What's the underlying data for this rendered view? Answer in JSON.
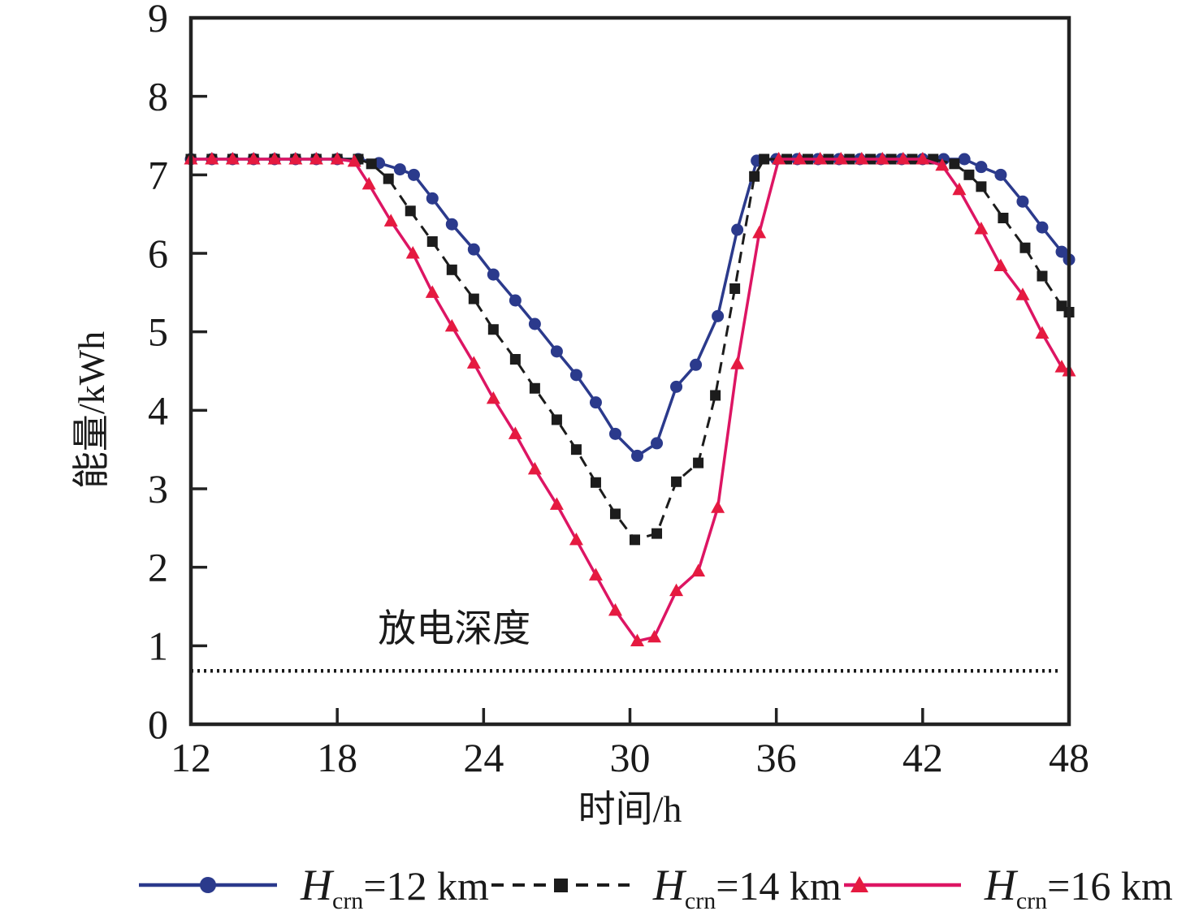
{
  "page": {
    "background": "#ffffff",
    "axis_color": "#222222",
    "text_color": "#1a1a1a"
  },
  "chart_data": {
    "type": "line",
    "title": "",
    "xlabel": "时间/h",
    "ylabel": "能量/kWh",
    "xlim": [
      12,
      48
    ],
    "ylim": [
      0,
      9
    ],
    "xticks": [
      12,
      18,
      24,
      30,
      36,
      42,
      48
    ],
    "yticks": [
      0,
      1,
      2,
      3,
      4,
      5,
      6,
      7,
      8,
      9
    ],
    "grid": false,
    "legend_position": "bottom",
    "annotation": {
      "text": "放电深度",
      "x": 22.8,
      "y": 1.22
    },
    "depth_line": {
      "label": "放电深度",
      "y": 0.68,
      "x_start": 12,
      "x_end": 47.55,
      "color": "#1a1a1a",
      "style": "dotted"
    },
    "series": [
      {
        "name": "Hcrn=12 km",
        "color": "#2b3a8c",
        "marker": "circle",
        "line_style": "solid",
        "points": [
          [
            12,
            7.2
          ],
          [
            12.86,
            7.2
          ],
          [
            13.71,
            7.2
          ],
          [
            14.57,
            7.2
          ],
          [
            15.43,
            7.2
          ],
          [
            16.29,
            7.2
          ],
          [
            17.14,
            7.2
          ],
          [
            18,
            7.2
          ],
          [
            18.86,
            7.2
          ],
          [
            19.71,
            7.15
          ],
          [
            20.57,
            7.07
          ],
          [
            21.14,
            7.0
          ],
          [
            21.9,
            6.7
          ],
          [
            22.7,
            6.37
          ],
          [
            23.6,
            6.05
          ],
          [
            24.4,
            5.73
          ],
          [
            25.3,
            5.4
          ],
          [
            26.1,
            5.1
          ],
          [
            27,
            4.75
          ],
          [
            27.8,
            4.45
          ],
          [
            28.6,
            4.1
          ],
          [
            29.4,
            3.7
          ],
          [
            30.3,
            3.42
          ],
          [
            31.1,
            3.58
          ],
          [
            31.9,
            4.3
          ],
          [
            32.7,
            4.58
          ],
          [
            33.6,
            5.2
          ],
          [
            34.4,
            6.3
          ],
          [
            35.2,
            7.18
          ],
          [
            36,
            7.2
          ],
          [
            36.86,
            7.2
          ],
          [
            37.71,
            7.2
          ],
          [
            38.57,
            7.2
          ],
          [
            39.43,
            7.2
          ],
          [
            40.29,
            7.2
          ],
          [
            41.14,
            7.2
          ],
          [
            42,
            7.2
          ],
          [
            42.86,
            7.2
          ],
          [
            43.71,
            7.2
          ],
          [
            44.4,
            7.1
          ],
          [
            45.2,
            7.0
          ],
          [
            46.1,
            6.66
          ],
          [
            46.9,
            6.33
          ],
          [
            47.7,
            6.02
          ],
          [
            48,
            5.92
          ]
        ]
      },
      {
        "name": "Hcrn=14 km",
        "color": "#1c1c1c",
        "marker": "square",
        "line_style": "dashed",
        "points": [
          [
            12,
            7.2
          ],
          [
            12.86,
            7.2
          ],
          [
            13.71,
            7.2
          ],
          [
            14.57,
            7.2
          ],
          [
            15.43,
            7.2
          ],
          [
            16.29,
            7.2
          ],
          [
            17.14,
            7.2
          ],
          [
            18,
            7.2
          ],
          [
            18.86,
            7.2
          ],
          [
            19.4,
            7.14
          ],
          [
            20.1,
            6.95
          ],
          [
            21,
            6.54
          ],
          [
            21.9,
            6.15
          ],
          [
            22.7,
            5.79
          ],
          [
            23.6,
            5.42
          ],
          [
            24.4,
            5.03
          ],
          [
            25.3,
            4.65
          ],
          [
            26.1,
            4.28
          ],
          [
            27,
            3.88
          ],
          [
            27.8,
            3.5
          ],
          [
            28.6,
            3.08
          ],
          [
            29.4,
            2.68
          ],
          [
            30.2,
            2.35
          ],
          [
            31.1,
            2.43
          ],
          [
            31.9,
            3.09
          ],
          [
            32.8,
            3.33
          ],
          [
            33.5,
            4.19
          ],
          [
            34.3,
            5.55
          ],
          [
            35.1,
            6.98
          ],
          [
            35.5,
            7.2
          ],
          [
            36.43,
            7.2
          ],
          [
            37.29,
            7.2
          ],
          [
            38.14,
            7.2
          ],
          [
            39,
            7.2
          ],
          [
            39.86,
            7.2
          ],
          [
            40.71,
            7.2
          ],
          [
            41.57,
            7.2
          ],
          [
            42.43,
            7.2
          ],
          [
            43.3,
            7.14
          ],
          [
            43.9,
            7.0
          ],
          [
            44.4,
            6.85
          ],
          [
            45.3,
            6.45
          ],
          [
            46.2,
            6.07
          ],
          [
            46.9,
            5.71
          ],
          [
            47.7,
            5.33
          ],
          [
            48,
            5.25
          ]
        ]
      },
      {
        "name": "Hcrn=16 km",
        "color": "#dd1563",
        "marker": "triangle",
        "marker_color": "#e51a40",
        "line_style": "solid",
        "points": [
          [
            12,
            7.2
          ],
          [
            12.86,
            7.2
          ],
          [
            13.71,
            7.2
          ],
          [
            14.57,
            7.2
          ],
          [
            15.43,
            7.2
          ],
          [
            16.29,
            7.2
          ],
          [
            17.14,
            7.2
          ],
          [
            18,
            7.2
          ],
          [
            18.7,
            7.17
          ],
          [
            19.3,
            6.88
          ],
          [
            20.2,
            6.41
          ],
          [
            21.1,
            6.0
          ],
          [
            21.9,
            5.5
          ],
          [
            22.7,
            5.07
          ],
          [
            23.6,
            4.6
          ],
          [
            24.4,
            4.15
          ],
          [
            25.3,
            3.7
          ],
          [
            26.1,
            3.25
          ],
          [
            27,
            2.8
          ],
          [
            27.8,
            2.35
          ],
          [
            28.6,
            1.9
          ],
          [
            29.4,
            1.45
          ],
          [
            30.3,
            1.06
          ],
          [
            31,
            1.11
          ],
          [
            31.9,
            1.7
          ],
          [
            32.8,
            1.95
          ],
          [
            33.6,
            2.76
          ],
          [
            34.4,
            4.59
          ],
          [
            35.3,
            6.26
          ],
          [
            36.1,
            7.2
          ],
          [
            36.95,
            7.2
          ],
          [
            37.8,
            7.2
          ],
          [
            38.65,
            7.2
          ],
          [
            39.5,
            7.2
          ],
          [
            40.35,
            7.2
          ],
          [
            41.2,
            7.2
          ],
          [
            42,
            7.2
          ],
          [
            42.8,
            7.12
          ],
          [
            43.5,
            6.81
          ],
          [
            44.4,
            6.31
          ],
          [
            45.2,
            5.84
          ],
          [
            46.1,
            5.47
          ],
          [
            46.9,
            4.98
          ],
          [
            47.7,
            4.55
          ],
          [
            48,
            4.5
          ]
        ]
      }
    ]
  },
  "legend": {
    "items": [
      {
        "symbol": "H",
        "subscript": "crn",
        "value": "=12 km"
      },
      {
        "symbol": "H",
        "subscript": "crn",
        "value": "=14 km"
      },
      {
        "symbol": "H",
        "subscript": "crn",
        "value": "=16 km"
      }
    ]
  }
}
